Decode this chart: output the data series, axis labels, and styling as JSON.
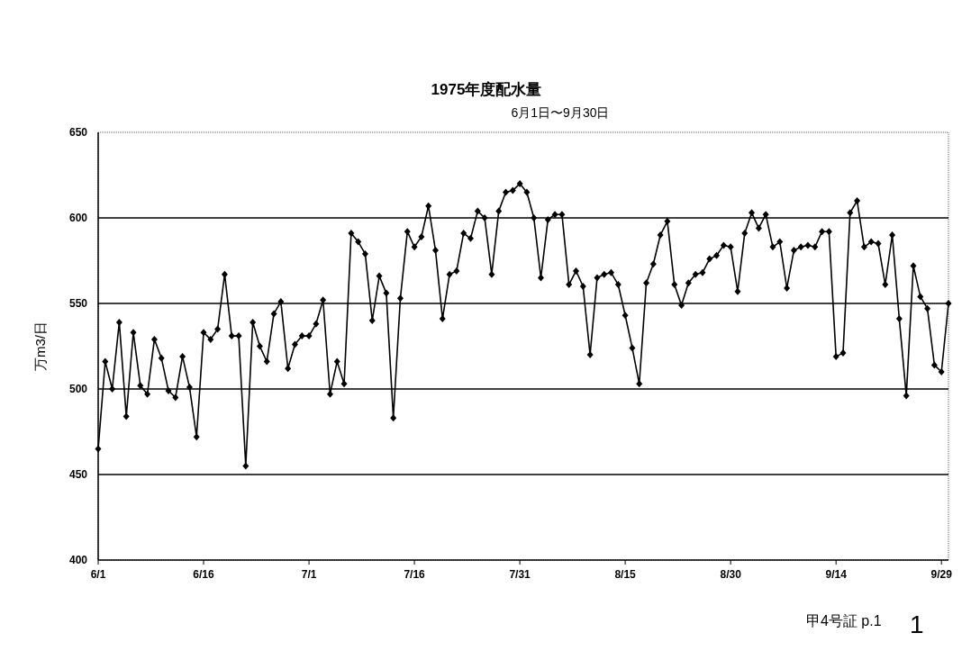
{
  "chart_data": {
    "type": "line",
    "title": "1975年度配水量",
    "subtitle": "6月1日〜9月30日",
    "ylabel": "万m3/日",
    "annotations": [
      "甲4号証 p.1",
      "1"
    ],
    "x": [
      "--06-01",
      "--06-02",
      "--06-03",
      "--06-04",
      "--06-05",
      "--06-06",
      "--06-07",
      "--06-08",
      "--06-09",
      "--06-10",
      "--06-11",
      "--06-12",
      "--06-13",
      "--06-14",
      "--06-15",
      "--06-16",
      "--06-17",
      "--06-18",
      "--06-19",
      "--06-20",
      "--06-21",
      "--06-22",
      "--06-23",
      "--06-24",
      "--06-25",
      "--06-26",
      "--06-27",
      "--06-28",
      "--06-29",
      "--06-30",
      "--07-01",
      "--07-02",
      "--07-03",
      "--07-04",
      "--07-05",
      "--07-06",
      "--07-07",
      "--07-08",
      "--07-09",
      "--07-10",
      "--07-11",
      "--07-12",
      "--07-13",
      "--07-14",
      "--07-15",
      "--07-16",
      "--07-17",
      "--07-18",
      "--07-19",
      "--07-20",
      "--07-21",
      "--07-22",
      "--07-23",
      "--07-24",
      "--07-25",
      "--07-26",
      "--07-27",
      "--07-28",
      "--07-29",
      "--07-30",
      "--07-31",
      "--08-01",
      "--08-02",
      "--08-03",
      "--08-04",
      "--08-05",
      "--08-06",
      "--08-07",
      "--08-08",
      "--08-09",
      "--08-10",
      "--08-11",
      "--08-12",
      "--08-13",
      "--08-14",
      "--08-15",
      "--08-16",
      "--08-17",
      "--08-18",
      "--08-19",
      "--08-20",
      "--08-21",
      "--08-22",
      "--08-23",
      "--08-24",
      "--08-25",
      "--08-26",
      "--08-27",
      "--08-28",
      "--08-29",
      "--08-30",
      "--08-31",
      "--09-01",
      "--09-02",
      "--09-03",
      "--09-04",
      "--09-05",
      "--09-06",
      "--09-07",
      "--09-08",
      "--09-09",
      "--09-10",
      "--09-11",
      "--09-12",
      "--09-13",
      "--09-14",
      "--09-15",
      "--09-16",
      "--09-17",
      "--09-18",
      "--09-19",
      "--09-20",
      "--09-21",
      "--09-22",
      "--09-23",
      "--09-24",
      "--09-25",
      "--09-26",
      "--09-27",
      "--09-28",
      "--09-29",
      "--09-30"
    ],
    "series": [
      {
        "color": "#000000",
        "values": [
          465,
          516,
          500,
          539,
          484,
          533,
          502,
          497,
          529,
          518,
          499,
          495,
          519,
          501,
          472,
          533,
          529,
          535,
          567,
          531,
          531,
          455,
          539,
          525,
          516,
          544,
          551,
          512,
          526,
          531,
          531,
          538,
          552,
          497,
          516,
          503,
          591,
          586,
          579,
          540,
          566,
          556,
          483,
          553,
          592,
          583,
          589,
          607,
          581,
          541,
          567,
          569,
          591,
          588,
          604,
          600,
          567,
          604,
          615,
          616,
          620,
          615,
          600,
          565,
          599,
          602,
          602,
          561,
          569,
          560,
          520,
          565,
          567,
          568,
          561,
          543,
          524,
          503,
          562,
          573,
          590,
          598,
          561,
          549,
          562,
          567,
          568,
          576,
          578,
          584,
          583,
          557,
          591,
          603,
          594,
          602,
          583,
          586,
          559,
          581,
          583,
          584,
          583,
          592,
          592,
          519,
          521,
          603,
          610,
          583,
          586,
          585,
          561,
          590,
          541,
          496,
          572,
          554,
          547,
          514,
          510,
          550
        ]
      }
    ],
    "xlim": [
      "--06-01",
      "--09-30"
    ],
    "xticks": [
      {
        "value": "--06-01",
        "label": "6/1"
      },
      {
        "value": "--06-16",
        "label": "6/16"
      },
      {
        "value": "--07-01",
        "label": "7/1"
      },
      {
        "value": "--07-16",
        "label": "7/16"
      },
      {
        "value": "--07-31",
        "label": "7/31"
      },
      {
        "value": "--08-15",
        "label": "8/15"
      },
      {
        "value": "--08-30",
        "label": "8/30"
      },
      {
        "value": "--09-14",
        "label": "9/14"
      },
      {
        "value": "--09-29",
        "label": "9/29"
      }
    ],
    "ylim": [
      400,
      650
    ],
    "yticks": [
      400,
      450,
      500,
      550,
      600,
      650
    ],
    "grid": "y",
    "marker": "diamond",
    "line_style": "solid"
  }
}
